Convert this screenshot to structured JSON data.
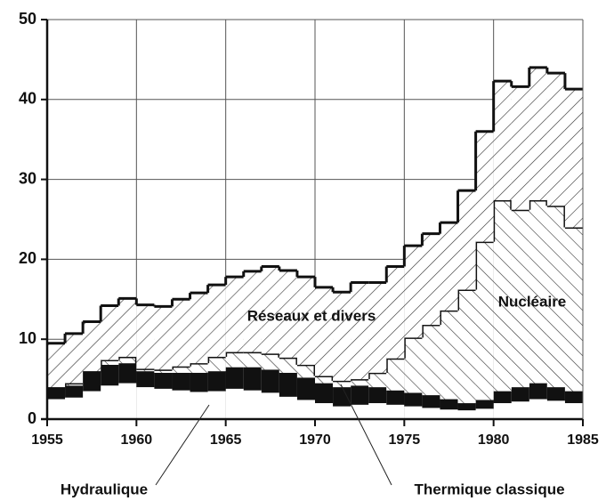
{
  "chart_data": {
    "type": "stacked-step",
    "x": [
      1955,
      1956,
      1957,
      1958,
      1959,
      1960,
      1961,
      1962,
      1963,
      1964,
      1965,
      1966,
      1967,
      1968,
      1969,
      1970,
      1971,
      1972,
      1973,
      1974,
      1975,
      1976,
      1977,
      1978,
      1979,
      1980,
      1981,
      1982,
      1983,
      1984
    ],
    "series": [
      {
        "name": "Hydraulique",
        "color": "#ffffff",
        "values": [
          2.5,
          2.7,
          3.5,
          4.2,
          4.5,
          4.0,
          3.8,
          3.6,
          3.4,
          3.5,
          3.8,
          3.6,
          3.3,
          2.8,
          2.4,
          2.0,
          1.6,
          1.8,
          2.0,
          1.8,
          1.6,
          1.4,
          1.2,
          1.1,
          1.3,
          2.0,
          2.2,
          2.5,
          2.3,
          2.0
        ]
      },
      {
        "name": "Thermique classique",
        "color": "#111111",
        "values": [
          1.5,
          1.5,
          2.5,
          2.6,
          2.5,
          2.0,
          2.0,
          2.2,
          2.4,
          2.5,
          2.7,
          2.9,
          2.9,
          3.0,
          2.8,
          2.5,
          2.4,
          2.4,
          2.0,
          1.8,
          1.7,
          1.6,
          1.3,
          0.9,
          1.1,
          1.5,
          1.8,
          2.0,
          1.7,
          1.5
        ]
      },
      {
        "name": "Nucléaire",
        "color": "#333333",
        "values": [
          0,
          0.3,
          0,
          0.6,
          0.8,
          0.3,
          0.4,
          0.8,
          1.2,
          1.8,
          1.9,
          1.9,
          2.0,
          1.9,
          1.6,
          0.9,
          0.8,
          0.8,
          1.8,
          4.0,
          6.9,
          8.8,
          11.1,
          14.2,
          19.8,
          23.9,
          22.2,
          22.9,
          22.7,
          20.5
        ]
      },
      {
        "name": "Réseaux et divers",
        "color": "#333333",
        "values": [
          5.5,
          6.2,
          6.2,
          6.8,
          7.3,
          8.0,
          7.9,
          8.4,
          8.8,
          9.0,
          9.4,
          10.1,
          10.9,
          10.9,
          11.0,
          11.1,
          11.1,
          12.1,
          11.3,
          11.5,
          11.5,
          11.4,
          11.0,
          12.4,
          13.8,
          14.9,
          15.4,
          16.6,
          16.6,
          17.3
        ]
      }
    ],
    "xlim": [
      1955,
      1985
    ],
    "xticks": [
      1955,
      1960,
      1965,
      1970,
      1975,
      1980,
      1985
    ],
    "ylim": [
      0,
      50
    ],
    "yticks": [
      0,
      10,
      20,
      30,
      40,
      50
    ],
    "grid": true
  }
}
